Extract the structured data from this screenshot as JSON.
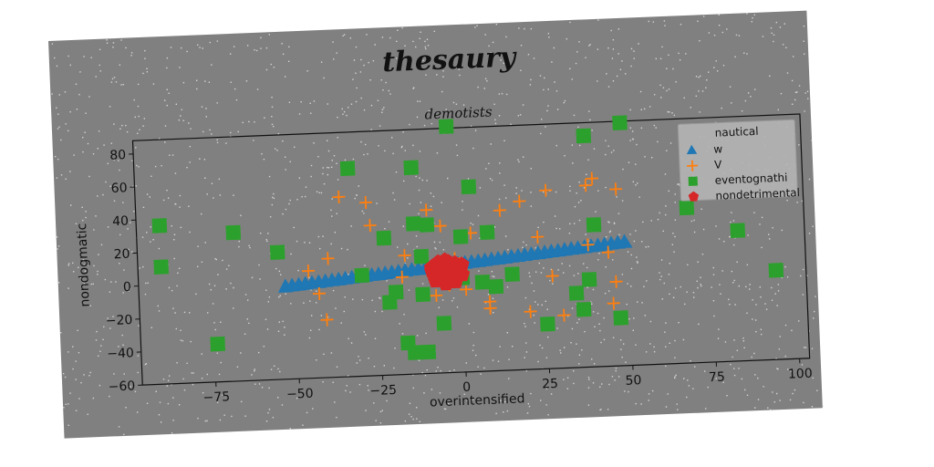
{
  "chart_data": {
    "type": "scatter",
    "suptitle": "thesaury",
    "title": "demotists",
    "xlabel": "overintensified",
    "ylabel": "nondogmatic",
    "xlim": [
      -97,
      103
    ],
    "ylim": [
      -60,
      88
    ],
    "xticks": [
      -75,
      -50,
      -25,
      0,
      25,
      50,
      75,
      100
    ],
    "yticks": [
      -60,
      -40,
      -20,
      0,
      20,
      40,
      60,
      80
    ],
    "xtick_labels": [
      "−75",
      "−50",
      "−25",
      "0",
      "25",
      "50",
      "75",
      "100"
    ],
    "ytick_labels": [
      "−60",
      "−40",
      "−20",
      "0",
      "20",
      "40",
      "60",
      "80"
    ],
    "grid": false,
    "legend": {
      "title": "nautical",
      "position": "top-right"
    },
    "colors": {
      "w": "#1f77b4",
      "V": "#ff7f0e",
      "eventognathi": "#2ca02c",
      "nondetrimental": "#d62728",
      "background": "#808080"
    },
    "series": [
      {
        "name": "w",
        "marker": "triangle",
        "x": [
          -53,
          -51,
          -49,
          -47,
          -45,
          -43,
          -41,
          -39,
          -37,
          -35,
          -33,
          -31,
          -29,
          -27,
          -25,
          -23,
          -21,
          -19,
          -17,
          -15,
          -13,
          -11,
          -9,
          -7,
          -5,
          -3,
          -1,
          1,
          3,
          5,
          7,
          9,
          11,
          13,
          15,
          17,
          19,
          21,
          23,
          25,
          27,
          29,
          31,
          33,
          35,
          37,
          39,
          41,
          43,
          45,
          47,
          49
        ],
        "y": [
          -4,
          -3.6,
          -3.3,
          -2.9,
          -2.5,
          -2.2,
          -1.8,
          -1.4,
          -1.1,
          -0.7,
          -0.3,
          0,
          0.4,
          0.8,
          1.1,
          1.5,
          1.9,
          2.2,
          2.6,
          3,
          3.3,
          3.7,
          4.1,
          4.4,
          4.8,
          5.2,
          5.5,
          5.9,
          6.3,
          6.6,
          7,
          7.4,
          7.7,
          8.1,
          8.5,
          8.8,
          9.2,
          9.6,
          9.9,
          10.3,
          10.7,
          11,
          11.4,
          11.8,
          12.1,
          12.5,
          12.9,
          13.2,
          13.6,
          14,
          14.3,
          14.7
        ]
      },
      {
        "name": "V",
        "marker": "plus",
        "x": [
          -46,
          -43,
          -41,
          -40,
          -36,
          -28,
          -27,
          -18,
          -17,
          -10,
          -8,
          -6,
          -4,
          -2,
          1,
          3,
          8,
          8,
          12,
          18,
          20,
          23,
          26,
          27,
          30,
          38,
          38,
          40,
          44,
          45,
          46,
          47
        ],
        "y": [
          5,
          -9,
          -25,
          12,
          49,
          45,
          31,
          -1,
          12,
          39,
          -13,
          29,
          -7,
          9,
          -10,
          24,
          -22,
          -18,
          37,
          42,
          -25,
          20,
          48,
          -4,
          -28,
          14,
          50,
          54,
          9,
          -22,
          -9,
          47
        ]
      },
      {
        "name": "eventognathi",
        "marker": "square",
        "x": [
          -90,
          -90,
          -74,
          -68,
          -55,
          -33,
          -30,
          -23,
          -22,
          -20,
          -17,
          -15,
          -14,
          -14,
          -12,
          -12,
          -11,
          -10,
          -6,
          -3,
          0,
          0,
          3,
          6,
          8,
          10,
          15,
          25,
          34,
          36,
          38,
          38,
          40,
          47,
          49,
          68,
          83,
          94
        ],
        "y": [
          36,
          11,
          -37,
          30,
          17,
          66,
          1,
          23,
          -16,
          -10,
          -41,
          -47,
          65,
          31,
          11,
          -12,
          -47,
          30,
          -30,
          89,
          22,
          -3,
          52,
          -6,
          24,
          -9,
          -2,
          -33,
          -15,
          -25,
          -7,
          80,
          26,
          -31,
          87,
          34,
          19,
          -6
        ]
      },
      {
        "name": "nondetrimental",
        "marker": "pentagon",
        "x": [
          -9,
          -8,
          -7,
          -6,
          -5,
          -4,
          -3,
          -2,
          -1,
          0,
          -8,
          -6,
          -4,
          -2,
          0,
          -7,
          -5,
          -3,
          -1,
          -9,
          -6,
          -4,
          -2,
          -5,
          -3,
          -7,
          -1,
          -4,
          -6,
          -2
        ],
        "y": [
          4,
          1,
          -2,
          6,
          3,
          0,
          -3,
          5,
          2,
          -1,
          -4,
          4,
          7,
          -5,
          5,
          -1,
          -6,
          3,
          0,
          2,
          -3,
          1,
          6,
          8,
          -2,
          7,
          3,
          -4,
          2,
          4
        ]
      }
    ]
  }
}
